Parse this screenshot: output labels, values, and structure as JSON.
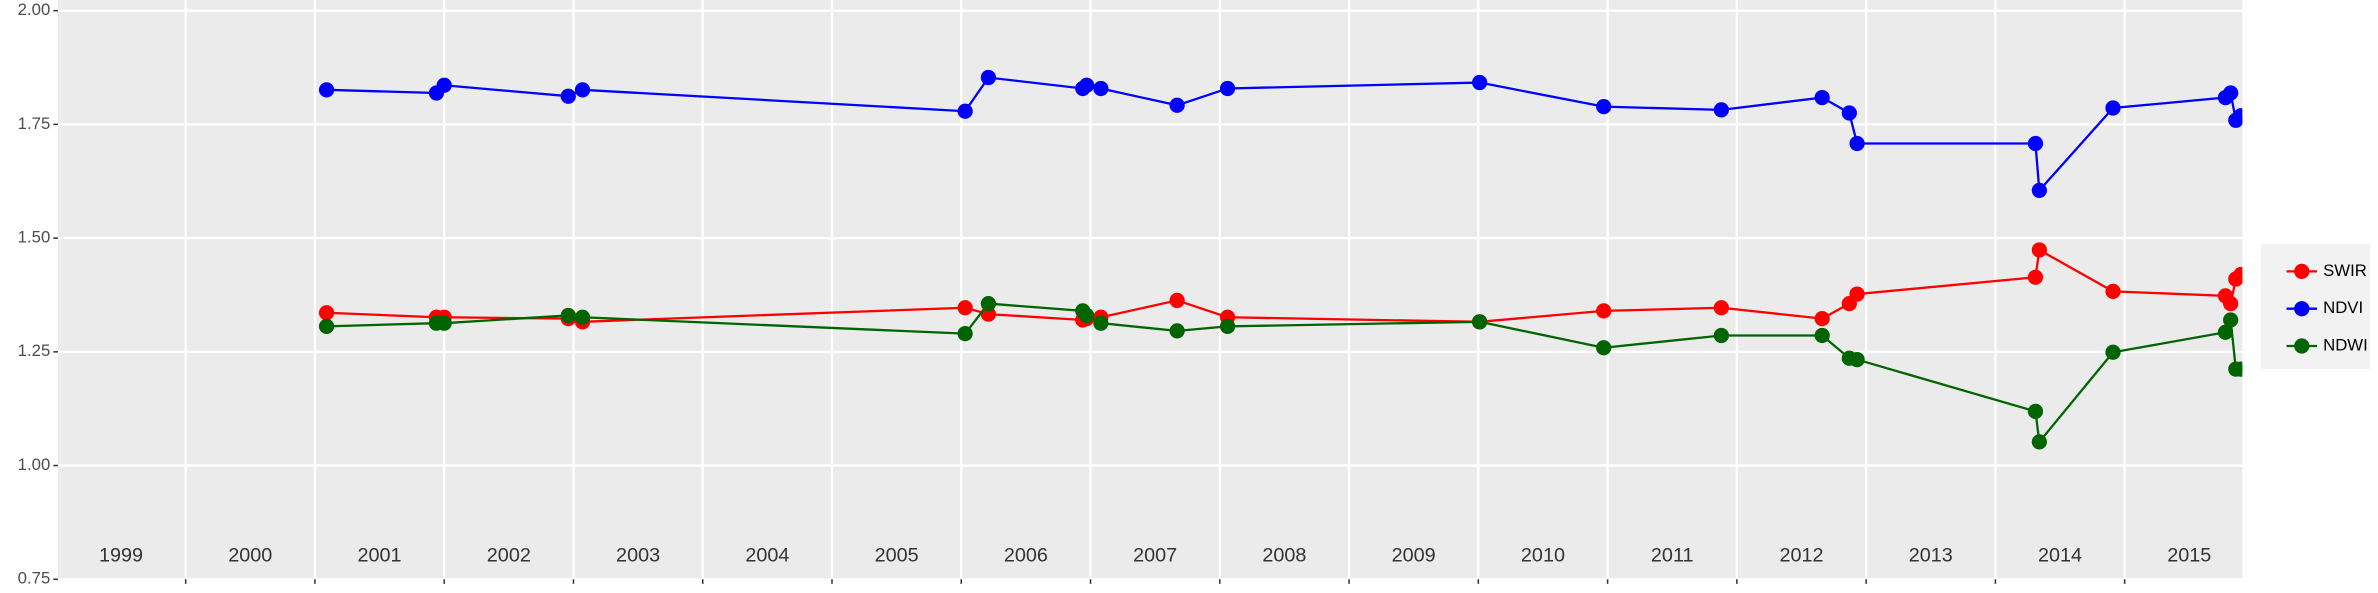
{
  "chart_data": {
    "type": "line",
    "x": [
      2001.09,
      2001.94,
      2002.0,
      2002.96,
      2003.07,
      2006.03,
      2006.21,
      2006.94,
      2006.97,
      2007.08,
      2007.67,
      2008.06,
      2010.01,
      2010.97,
      2011.88,
      2012.66,
      2012.87,
      2012.93,
      2014.31,
      2014.34,
      2014.91,
      2015.78,
      2015.82,
      2015.86,
      2015.9
    ],
    "series": [
      {
        "name": "SWIR",
        "color": "#ff0000",
        "values": [
          1.336,
          1.326,
          1.326,
          1.323,
          1.316,
          1.347,
          1.333,
          1.32,
          1.323,
          1.326,
          1.363,
          1.326,
          1.316,
          1.34,
          1.347,
          1.323,
          1.356,
          1.377,
          1.414,
          1.474,
          1.383,
          1.373,
          1.356,
          1.41,
          1.42
        ]
      },
      {
        "name": "NDVI",
        "color": "#0000ff",
        "values": [
          1.826,
          1.819,
          1.836,
          1.812,
          1.826,
          1.779,
          1.853,
          1.829,
          1.836,
          1.829,
          1.792,
          1.829,
          1.842,
          1.789,
          1.782,
          1.809,
          1.775,
          1.708,
          1.708,
          1.605,
          1.786,
          1.809,
          1.819,
          1.759,
          1.769
        ]
      },
      {
        "name": "NDWI",
        "color": "#006400",
        "values": [
          1.306,
          1.313,
          1.313,
          1.33,
          1.326,
          1.29,
          1.356,
          1.34,
          1.33,
          1.313,
          1.296,
          1.306,
          1.316,
          1.259,
          1.286,
          1.286,
          1.236,
          1.233,
          1.119,
          1.052,
          1.249,
          1.293,
          1.32,
          1.212,
          1.212
        ]
      }
    ],
    "xlim": [
      1999,
      2015.9
    ],
    "xgrid": [
      2000,
      2001,
      2002,
      2003,
      2004,
      2005,
      2006,
      2007,
      2008,
      2009,
      2010,
      2011,
      2012,
      2013,
      2014,
      2015
    ],
    "xticks": [
      {
        "value": 1999.5,
        "label": "1999"
      },
      {
        "value": 2000.5,
        "label": "2000"
      },
      {
        "value": 2001.5,
        "label": "2001"
      },
      {
        "value": 2002.5,
        "label": "2002"
      },
      {
        "value": 2003.5,
        "label": "2003"
      },
      {
        "value": 2004.5,
        "label": "2004"
      },
      {
        "value": 2005.5,
        "label": "2005"
      },
      {
        "value": 2006.5,
        "label": "2006"
      },
      {
        "value": 2007.5,
        "label": "2007"
      },
      {
        "value": 2008.5,
        "label": "2008"
      },
      {
        "value": 2009.5,
        "label": "2009"
      },
      {
        "value": 2010.5,
        "label": "2010"
      },
      {
        "value": 2011.5,
        "label": "2011"
      },
      {
        "value": 2012.5,
        "label": "2012"
      },
      {
        "value": 2013.5,
        "label": "2013"
      },
      {
        "value": 2014.5,
        "label": "2014"
      },
      {
        "value": 2015.5,
        "label": "2015"
      }
    ],
    "ylim": [
      0.75,
      2.0
    ],
    "yticks": [
      {
        "value": 0.75,
        "label": "0.75"
      },
      {
        "value": 1.0,
        "label": "1.00"
      },
      {
        "value": 1.25,
        "label": "1.25"
      },
      {
        "value": 1.5,
        "label": "1.50"
      },
      {
        "value": 1.75,
        "label": "1.75"
      },
      {
        "value": 2.0,
        "label": "2.00"
      }
    ],
    "grid": true
  }
}
